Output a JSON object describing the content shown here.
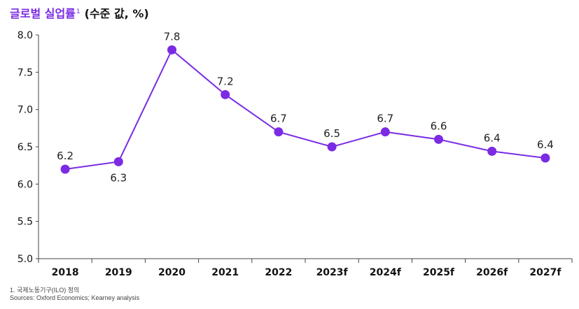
{
  "header": {
    "title": "글로벌 실업률",
    "title_sup": "1",
    "unit": "(수준 값, %)"
  },
  "chart_data": {
    "type": "line",
    "categories": [
      "2018",
      "2019",
      "2020",
      "2021",
      "2022",
      "2023f",
      "2024f",
      "2025f",
      "2026f",
      "2027f"
    ],
    "series": [
      {
        "values": [
          6.2,
          6.3,
          7.8,
          7.2,
          6.7,
          6.5,
          6.7,
          6.6,
          6.44,
          6.35
        ]
      }
    ],
    "data_labels": [
      "6.2",
      "6.3",
      "7.8",
      "7.2",
      "6.7",
      "6.5",
      "6.7",
      "6.6",
      "6.4",
      "6.4"
    ],
    "yticks": [
      "5.0",
      "5.5",
      "6.0",
      "6.5",
      "7.0",
      "7.5",
      "8.0"
    ],
    "ylim": [
      5.0,
      8.0
    ],
    "grid": false,
    "line_color": "#7a2be3",
    "marker_color": "#7a2be3"
  },
  "footnotes": {
    "note": "1. 국제노동기구(ILO) 정의",
    "sources": "Sources: Oxford Economics; Kearney analysis"
  }
}
